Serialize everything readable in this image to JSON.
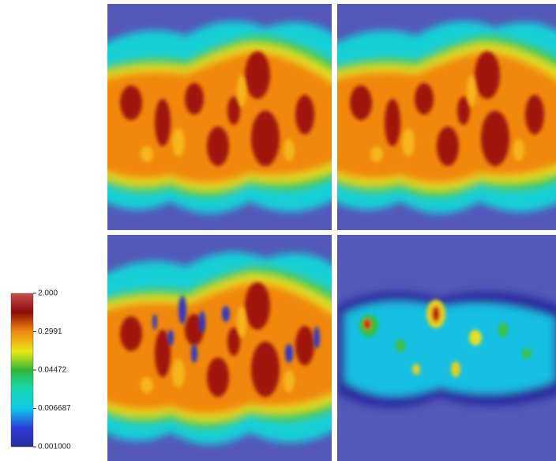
{
  "colorbar": {
    "scale": "log",
    "range": [
      0.001,
      2
    ],
    "ticks": [
      {
        "value": 2,
        "label": "2.000"
      },
      {
        "value": 0.2991,
        "label": "0.2991"
      },
      {
        "value": 0.04472,
        "label": "0.04472"
      },
      {
        "value": 0.006687,
        "label": "0.006687"
      },
      {
        "value": 0.001,
        "label": "0.001000"
      }
    ]
  }
}
